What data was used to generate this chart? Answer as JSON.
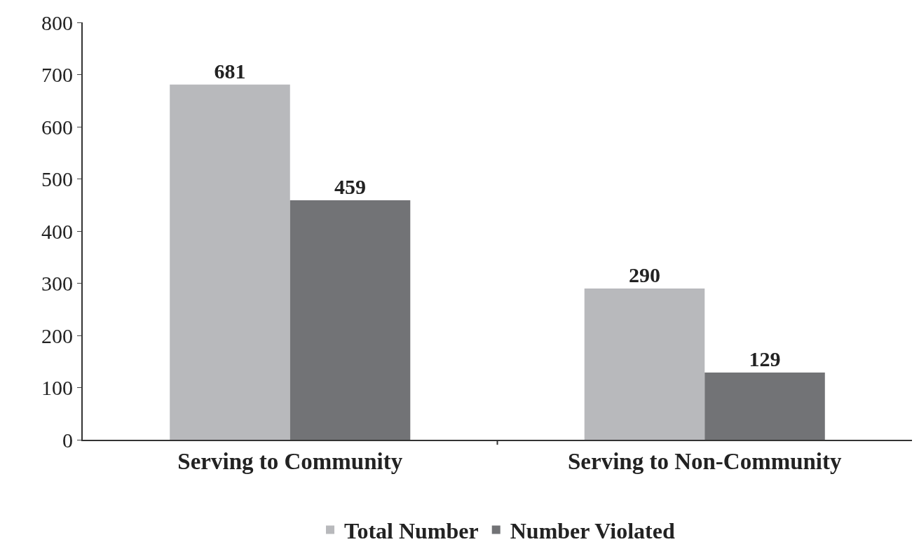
{
  "chart_data": {
    "type": "bar",
    "categories": [
      "Serving to Community",
      "Serving to Non-Community"
    ],
    "series": [
      {
        "name": "Total Number",
        "color": "#b8b9bc",
        "values": [
          681,
          290
        ]
      },
      {
        "name": "Number Violated",
        "color": "#727376",
        "values": [
          459,
          129
        ]
      }
    ],
    "ylim": [
      0,
      800
    ],
    "yticks": [
      0,
      100,
      200,
      300,
      400,
      500,
      600,
      700,
      800
    ],
    "data_labels": true,
    "legend": "bottom"
  }
}
